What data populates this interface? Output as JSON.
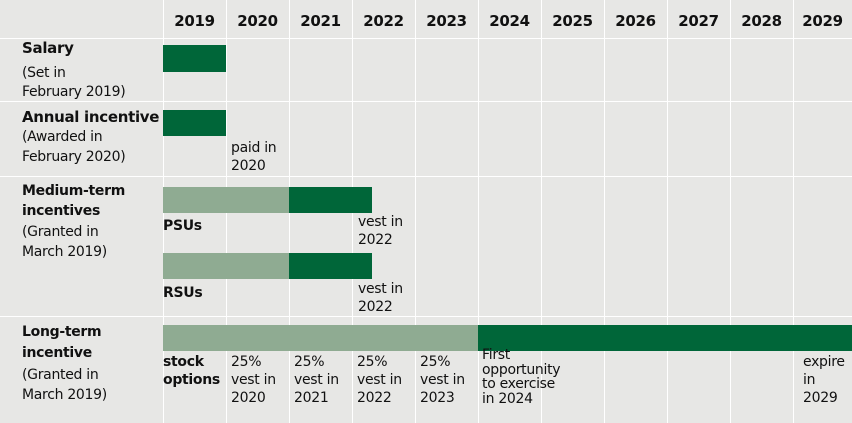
{
  "years": [
    "2019",
    "2020",
    "2021",
    "2022",
    "2023",
    "2024",
    "2025",
    "2026",
    "2027",
    "2028",
    "2029"
  ],
  "salary": {
    "title": "Salary",
    "note": [
      "(Set in",
      "February 2019)"
    ]
  },
  "annual": {
    "title": "Annual incentive",
    "note": [
      "(Awarded in",
      "February 2020)"
    ],
    "payout": [
      "paid in",
      "2020"
    ]
  },
  "medium": {
    "title": [
      "Medium-term",
      "incentives"
    ],
    "note": [
      "(Granted in",
      "March 2019)"
    ],
    "psu": {
      "label": "PSUs",
      "vest": [
        "vest in",
        "2022"
      ]
    },
    "rsu": {
      "label": "RSUs",
      "vest": [
        "vest in",
        "2022"
      ]
    }
  },
  "long": {
    "title": [
      "Long-term",
      "incentive"
    ],
    "note": [
      "(Granted in",
      "March 2019)"
    ],
    "label": [
      "stock",
      "options"
    ],
    "vesting": [
      [
        "25%",
        "vest in",
        "2020"
      ],
      [
        "25%",
        "vest in",
        "2021"
      ],
      [
        "25%",
        "vest in",
        "2022"
      ],
      [
        "25%",
        "vest in",
        "2023"
      ]
    ],
    "first": [
      "First",
      "opportunity",
      "to exercise",
      "in 2024"
    ],
    "expire": [
      "expire",
      "in",
      "2029"
    ]
  }
}
